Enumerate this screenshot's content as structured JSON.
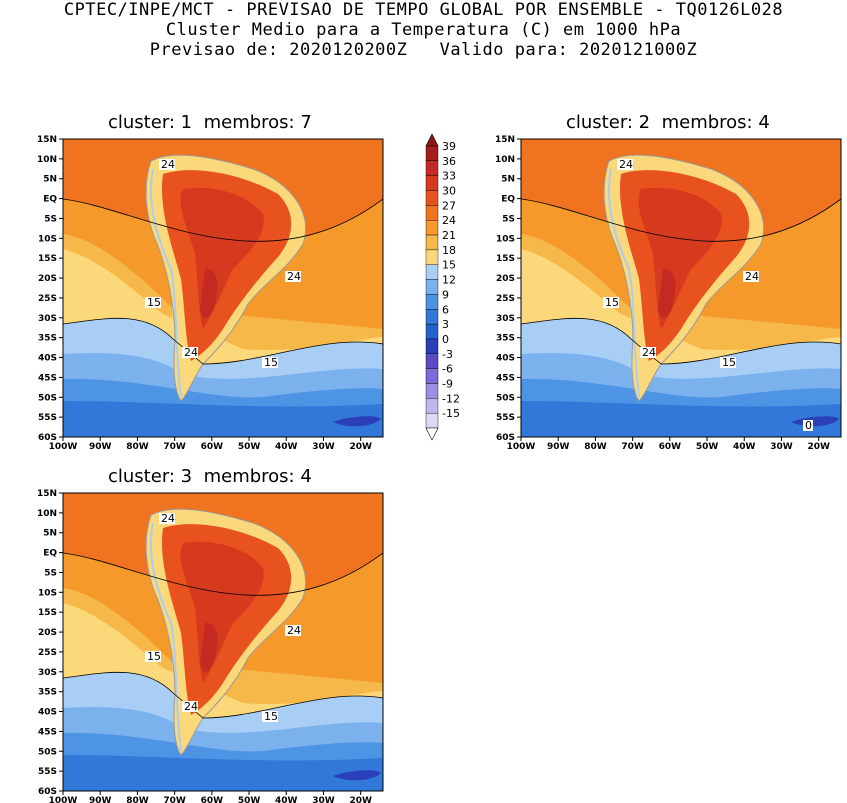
{
  "header": {
    "line1": "CPTEC/INPE/MCT - PREVISAO DE TEMPO GLOBAL POR ENSEMBLE - TQ0126L028",
    "line2": "Cluster Medio para a Temperatura (C) em 1000 hPa",
    "line3": "Previsao de: 2020120200Z   Valido para: 2020121000Z"
  },
  "panels": [
    {
      "title": "cluster: 1  membros: 7",
      "labels": [
        "24",
        "24",
        "24",
        "15",
        "15"
      ]
    },
    {
      "title": "cluster: 2  membros: 4",
      "labels": [
        "24",
        "24",
        "24",
        "15",
        "15",
        "0"
      ]
    },
    {
      "title": "cluster: 3  membros: 4",
      "labels": [
        "24",
        "24",
        "24",
        "15",
        "15"
      ]
    }
  ],
  "axes": {
    "lat_ticks": [
      "15N",
      "10N",
      "5N",
      "EQ",
      "5S",
      "10S",
      "15S",
      "20S",
      "25S",
      "30S",
      "35S",
      "40S",
      "45S",
      "50S",
      "55S",
      "60S"
    ],
    "lon_ticks": [
      "100W",
      "90W",
      "80W",
      "70W",
      "60W",
      "50W",
      "40W",
      "30W",
      "20W"
    ]
  },
  "colorbar": {
    "labels": [
      "39",
      "36",
      "33",
      "30",
      "27",
      "24",
      "21",
      "18",
      "15",
      "12",
      "9",
      "6",
      "3",
      "0",
      "-3",
      "-6",
      "-9",
      "-12",
      "-15"
    ],
    "colors": [
      "#a51c1c",
      "#c42a22",
      "#d63a1e",
      "#e8521e",
      "#f0731f",
      "#f59a2a",
      "#f7b84a",
      "#fbd97a",
      "#a9cef5",
      "#7bb2ee",
      "#4e94e5",
      "#3278d9",
      "#2360cc",
      "#2a3fb8",
      "#5a4ac8",
      "#7c6ad6",
      "#9d8ee2",
      "#c0b6ee",
      "#ddd6f7"
    ]
  }
}
